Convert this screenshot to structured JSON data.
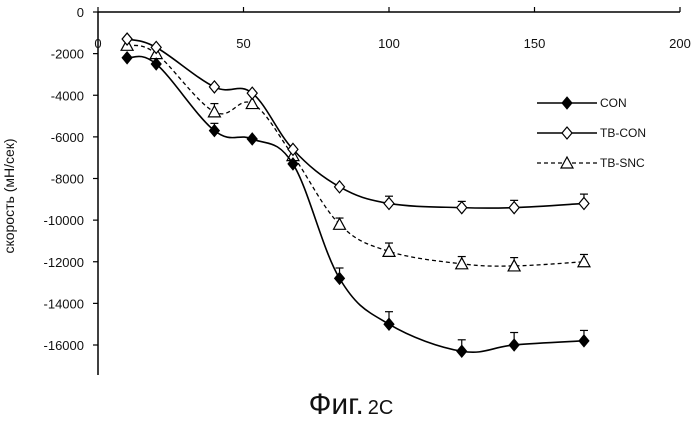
{
  "chart_data": {
    "type": "line",
    "xlabel": "",
    "ylabel": "скорость (мН/сек)",
    "xlim": [
      0,
      200
    ],
    "ylim": [
      -16000,
      0
    ],
    "x_ticks": [
      "0",
      "50",
      "100",
      "150",
      "200"
    ],
    "y_ticks": [
      "0",
      "-2000",
      "-4000",
      "-6000",
      "-8000",
      "-10000",
      "-12000",
      "-14000",
      "-16000"
    ],
    "x_tick_values": [
      0,
      50,
      100,
      150,
      200
    ],
    "y_tick_values": [
      0,
      -2000,
      -4000,
      -6000,
      -8000,
      -10000,
      -12000,
      -14000,
      -16000
    ],
    "grid": false,
    "legend_position": "right",
    "series": [
      {
        "name": "CON",
        "marker": "filled-diamond",
        "line": "solid",
        "x": [
          10,
          20,
          40,
          53,
          67,
          83,
          100,
          125,
          143,
          167
        ],
        "y": [
          -2200,
          -2500,
          -5700,
          -6100,
          -7300,
          -12800,
          -15000,
          -16300,
          -16000,
          -15800
        ],
        "error": [
          0,
          0,
          350,
          0,
          0,
          500,
          600,
          550,
          600,
          500
        ]
      },
      {
        "name": "TB-CON",
        "marker": "open-diamond",
        "line": "solid",
        "x": [
          10,
          20,
          40,
          53,
          67,
          83,
          100,
          125,
          143,
          167
        ],
        "y": [
          -1300,
          -1700,
          -3600,
          -3900,
          -6600,
          -8400,
          -9200,
          -9400,
          -9400,
          -9200
        ],
        "error": [
          0,
          0,
          0,
          0,
          0,
          0,
          350,
          300,
          350,
          450
        ]
      },
      {
        "name": "TB-SNC",
        "marker": "open-triangle",
        "line": "dashed",
        "x": [
          10,
          20,
          40,
          53,
          67,
          83,
          100,
          125,
          143,
          167
        ],
        "y": [
          -1600,
          -2000,
          -4800,
          -4400,
          -6900,
          -10200,
          -11500,
          -12100,
          -12200,
          -12000
        ],
        "error": [
          0,
          0,
          400,
          0,
          0,
          300,
          400,
          350,
          400,
          350
        ]
      }
    ]
  },
  "caption": {
    "main": "Фиг.",
    "sub": "2C"
  }
}
